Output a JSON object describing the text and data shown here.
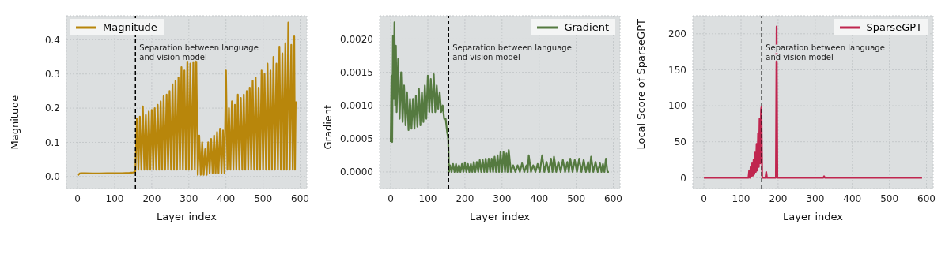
{
  "chart_data": [
    {
      "type": "line",
      "xlabel": "Layer index",
      "ylabel": "Magnitude",
      "xlim": [
        -30,
        618
      ],
      "ylim": [
        -0.035,
        0.47
      ],
      "xticks": [
        0,
        100,
        200,
        300,
        400,
        500,
        600
      ],
      "yticks": [
        {
          "value": 0,
          "label": "0.0"
        },
        {
          "value": 0.1,
          "label": "0.1"
        },
        {
          "value": 0.2,
          "label": "0.2"
        },
        {
          "value": 0.3,
          "label": "0.3"
        },
        {
          "value": 0.4,
          "label": "0.4"
        }
      ],
      "grid": true,
      "legend": "top left",
      "ref_lines": [
        {
          "axis": "x",
          "value": 156,
          "label": "Separation between language and vision model",
          "color": "#000000",
          "line_style": "dashed"
        }
      ],
      "series": [
        {
          "name": "Magnitude",
          "color": "#b8860b",
          "x": [
            0,
            3,
            6,
            10,
            20,
            40,
            60,
            80,
            100,
            120,
            140,
            150,
            155,
            156,
            160,
            164,
            168,
            172,
            176,
            180,
            184,
            188,
            192,
            196,
            200,
            204,
            208,
            212,
            216,
            220,
            224,
            228,
            232,
            236,
            240,
            244,
            248,
            252,
            256,
            260,
            264,
            268,
            272,
            276,
            280,
            284,
            288,
            292,
            296,
            300,
            304,
            308,
            312,
            316,
            320,
            324,
            328,
            332,
            336,
            340,
            344,
            348,
            352,
            356,
            360,
            364,
            368,
            372,
            376,
            380,
            384,
            388,
            392,
            396,
            400,
            404,
            408,
            412,
            416,
            420,
            424,
            428,
            432,
            436,
            440,
            444,
            448,
            452,
            456,
            460,
            464,
            468,
            472,
            476,
            480,
            484,
            488,
            492,
            496,
            500,
            504,
            508,
            512,
            516,
            520,
            524,
            528,
            532,
            536,
            540,
            544,
            548,
            552,
            556,
            560,
            564,
            568,
            572,
            576,
            580,
            584,
            586,
            588
          ],
          "values": [
            0.003,
            0.006,
            0.009,
            0.01,
            0.01,
            0.009,
            0.009,
            0.01,
            0.01,
            0.01,
            0.011,
            0.012,
            0.013,
            0.02,
            0.17,
            0.02,
            0.175,
            0.02,
            0.205,
            0.02,
            0.18,
            0.02,
            0.19,
            0.02,
            0.195,
            0.02,
            0.2,
            0.02,
            0.21,
            0.02,
            0.22,
            0.02,
            0.235,
            0.02,
            0.24,
            0.02,
            0.25,
            0.02,
            0.27,
            0.02,
            0.28,
            0.02,
            0.29,
            0.02,
            0.32,
            0.02,
            0.31,
            0.02,
            0.345,
            0.02,
            0.33,
            0.02,
            0.335,
            0.02,
            0.34,
            0.005,
            0.12,
            0.005,
            0.1,
            0.005,
            0.08,
            0.005,
            0.1,
            0.01,
            0.11,
            0.01,
            0.12,
            0.01,
            0.13,
            0.01,
            0.14,
            0.01,
            0.135,
            0.01,
            0.31,
            0.02,
            0.2,
            0.02,
            0.22,
            0.02,
            0.21,
            0.02,
            0.24,
            0.02,
            0.23,
            0.02,
            0.24,
            0.02,
            0.25,
            0.02,
            0.26,
            0.02,
            0.28,
            0.02,
            0.29,
            0.02,
            0.26,
            0.02,
            0.31,
            0.02,
            0.3,
            0.02,
            0.33,
            0.02,
            0.31,
            0.02,
            0.35,
            0.02,
            0.33,
            0.02,
            0.38,
            0.02,
            0.36,
            0.02,
            0.39,
            0.02,
            0.45,
            0.02,
            0.385,
            0.02,
            0.41,
            0.02,
            0.22
          ]
        }
      ]
    },
    {
      "type": "line",
      "xlabel": "Layer index",
      "ylabel": "Gradient",
      "xlim": [
        -30,
        618
      ],
      "ylim": [
        -0.00025,
        0.00235
      ],
      "xticks": [
        0,
        100,
        200,
        300,
        400,
        500,
        600
      ],
      "yticks": [
        {
          "value": 0,
          "label": "0.0000"
        },
        {
          "value": 0.0005,
          "label": "0.0005"
        },
        {
          "value": 0.001,
          "label": "0.0010"
        },
        {
          "value": 0.0015,
          "label": "0.0015"
        },
        {
          "value": 0.002,
          "label": "0.0020"
        }
      ],
      "grid": true,
      "legend": "top right",
      "ref_lines": [
        {
          "axis": "x",
          "value": 156,
          "label": "Separation between language and vision model",
          "color": "#000000",
          "line_style": "dashed"
        }
      ],
      "series": [
        {
          "name": "Gradient",
          "color": "#557a40",
          "x": [
            0,
            2,
            4,
            6,
            8,
            10,
            12,
            14,
            16,
            20,
            24,
            28,
            32,
            36,
            40,
            44,
            48,
            52,
            56,
            60,
            64,
            68,
            72,
            76,
            80,
            84,
            88,
            92,
            96,
            100,
            104,
            108,
            112,
            116,
            120,
            124,
            128,
            132,
            136,
            140,
            144,
            148,
            152,
            155,
            157,
            160,
            164,
            168,
            172,
            176,
            180,
            184,
            188,
            192,
            196,
            200,
            204,
            208,
            212,
            216,
            220,
            224,
            228,
            232,
            236,
            240,
            244,
            248,
            252,
            256,
            260,
            264,
            268,
            272,
            276,
            280,
            284,
            288,
            292,
            296,
            300,
            304,
            308,
            312,
            315,
            318,
            324,
            330,
            336,
            342,
            348,
            354,
            360,
            366,
            369,
            372,
            378,
            384,
            390,
            396,
            402,
            408,
            414,
            420,
            426,
            432,
            436,
            440,
            446,
            452,
            458,
            464,
            470,
            476,
            480,
            484,
            490,
            496,
            502,
            508,
            514,
            520,
            526,
            532,
            536,
            540,
            546,
            552,
            558,
            564,
            568,
            572,
            576,
            580,
            584,
            588
          ],
          "values": [
            0.00045,
            0.00145,
            0.00045,
            0.00205,
            0.0011,
            0.00225,
            0.001,
            0.0019,
            0.0009,
            0.0017,
            0.0008,
            0.0015,
            0.00075,
            0.0013,
            0.0007,
            0.0012,
            0.00063,
            0.0011,
            0.00065,
            0.0011,
            0.00065,
            0.00115,
            0.00068,
            0.00125,
            0.0007,
            0.0012,
            0.00075,
            0.0013,
            0.0008,
            0.00145,
            0.0009,
            0.0014,
            0.0009,
            0.00147,
            0.0009,
            0.0013,
            0.00095,
            0.0012,
            0.0009,
            0.001,
            0.0008,
            0.0008,
            0.0006,
            0.0005,
            0,
            0.0001,
            0,
            0.00012,
            0,
            0.00012,
            0,
            0.0001,
            0,
            0.00012,
            0,
            0.00014,
            0,
            0.00012,
            0,
            0.00012,
            0,
            0.00015,
            0,
            0.00015,
            0,
            0.00018,
            0,
            0.00018,
            0,
            0.0002,
            0,
            0.0002,
            0,
            0.0002,
            0,
            0.00023,
            0,
            0.00025,
            0,
            0.0003,
            0,
            0.0003,
            0,
            0.00028,
            0,
            0.00033,
            0,
            0.0001,
            0,
            0.0001,
            0,
            0.00013,
            0,
            0.0001,
            0,
            0.00025,
            0,
            0.0001,
            0,
            0.00012,
            0,
            0.00025,
            0,
            0.00015,
            0,
            0.0002,
            0,
            0.00023,
            0,
            0.00015,
            0,
            0.00018,
            0,
            0.00015,
            0,
            0.0002,
            0,
            0.00018,
            0,
            0.0002,
            0,
            0.00018,
            0,
            0.00015,
            0,
            0.00023,
            0,
            0.00015,
            0,
            0.00013,
            0,
            0.00012,
            0,
            0.0002,
            0,
            0
          ]
        }
      ]
    },
    {
      "type": "line",
      "xlabel": "Layer index",
      "ylabel": "Local Score of SparseGPT",
      "xlim": [
        -30,
        618
      ],
      "ylim": [
        -15,
        225
      ],
      "xticks": [
        0,
        100,
        200,
        300,
        400,
        500,
        600
      ],
      "yticks": [
        0,
        50,
        100,
        150,
        200
      ],
      "grid": true,
      "legend": "top right",
      "ref_lines": [
        {
          "axis": "x",
          "value": 156,
          "label": "Separation between language and vision model",
          "color": "#000000",
          "line_style": "dashed"
        }
      ],
      "series": [
        {
          "name": "SparseGPT",
          "color": "#c0264f",
          "x": [
            0,
            120,
            122,
            124,
            126,
            128,
            130,
            132,
            134,
            136,
            138,
            140,
            142,
            144,
            146,
            148,
            150,
            152,
            154,
            155,
            157,
            166,
            168,
            170,
            194,
            196,
            198,
            322,
            324,
            326,
            588
          ],
          "values": [
            0,
            0,
            10,
            0,
            15,
            2,
            20,
            3,
            25,
            5,
            35,
            8,
            47,
            10,
            62,
            15,
            82,
            20,
            95,
            98,
            0,
            0,
            8,
            0,
            0,
            210,
            0,
            0,
            2,
            0,
            0
          ]
        }
      ]
    }
  ]
}
